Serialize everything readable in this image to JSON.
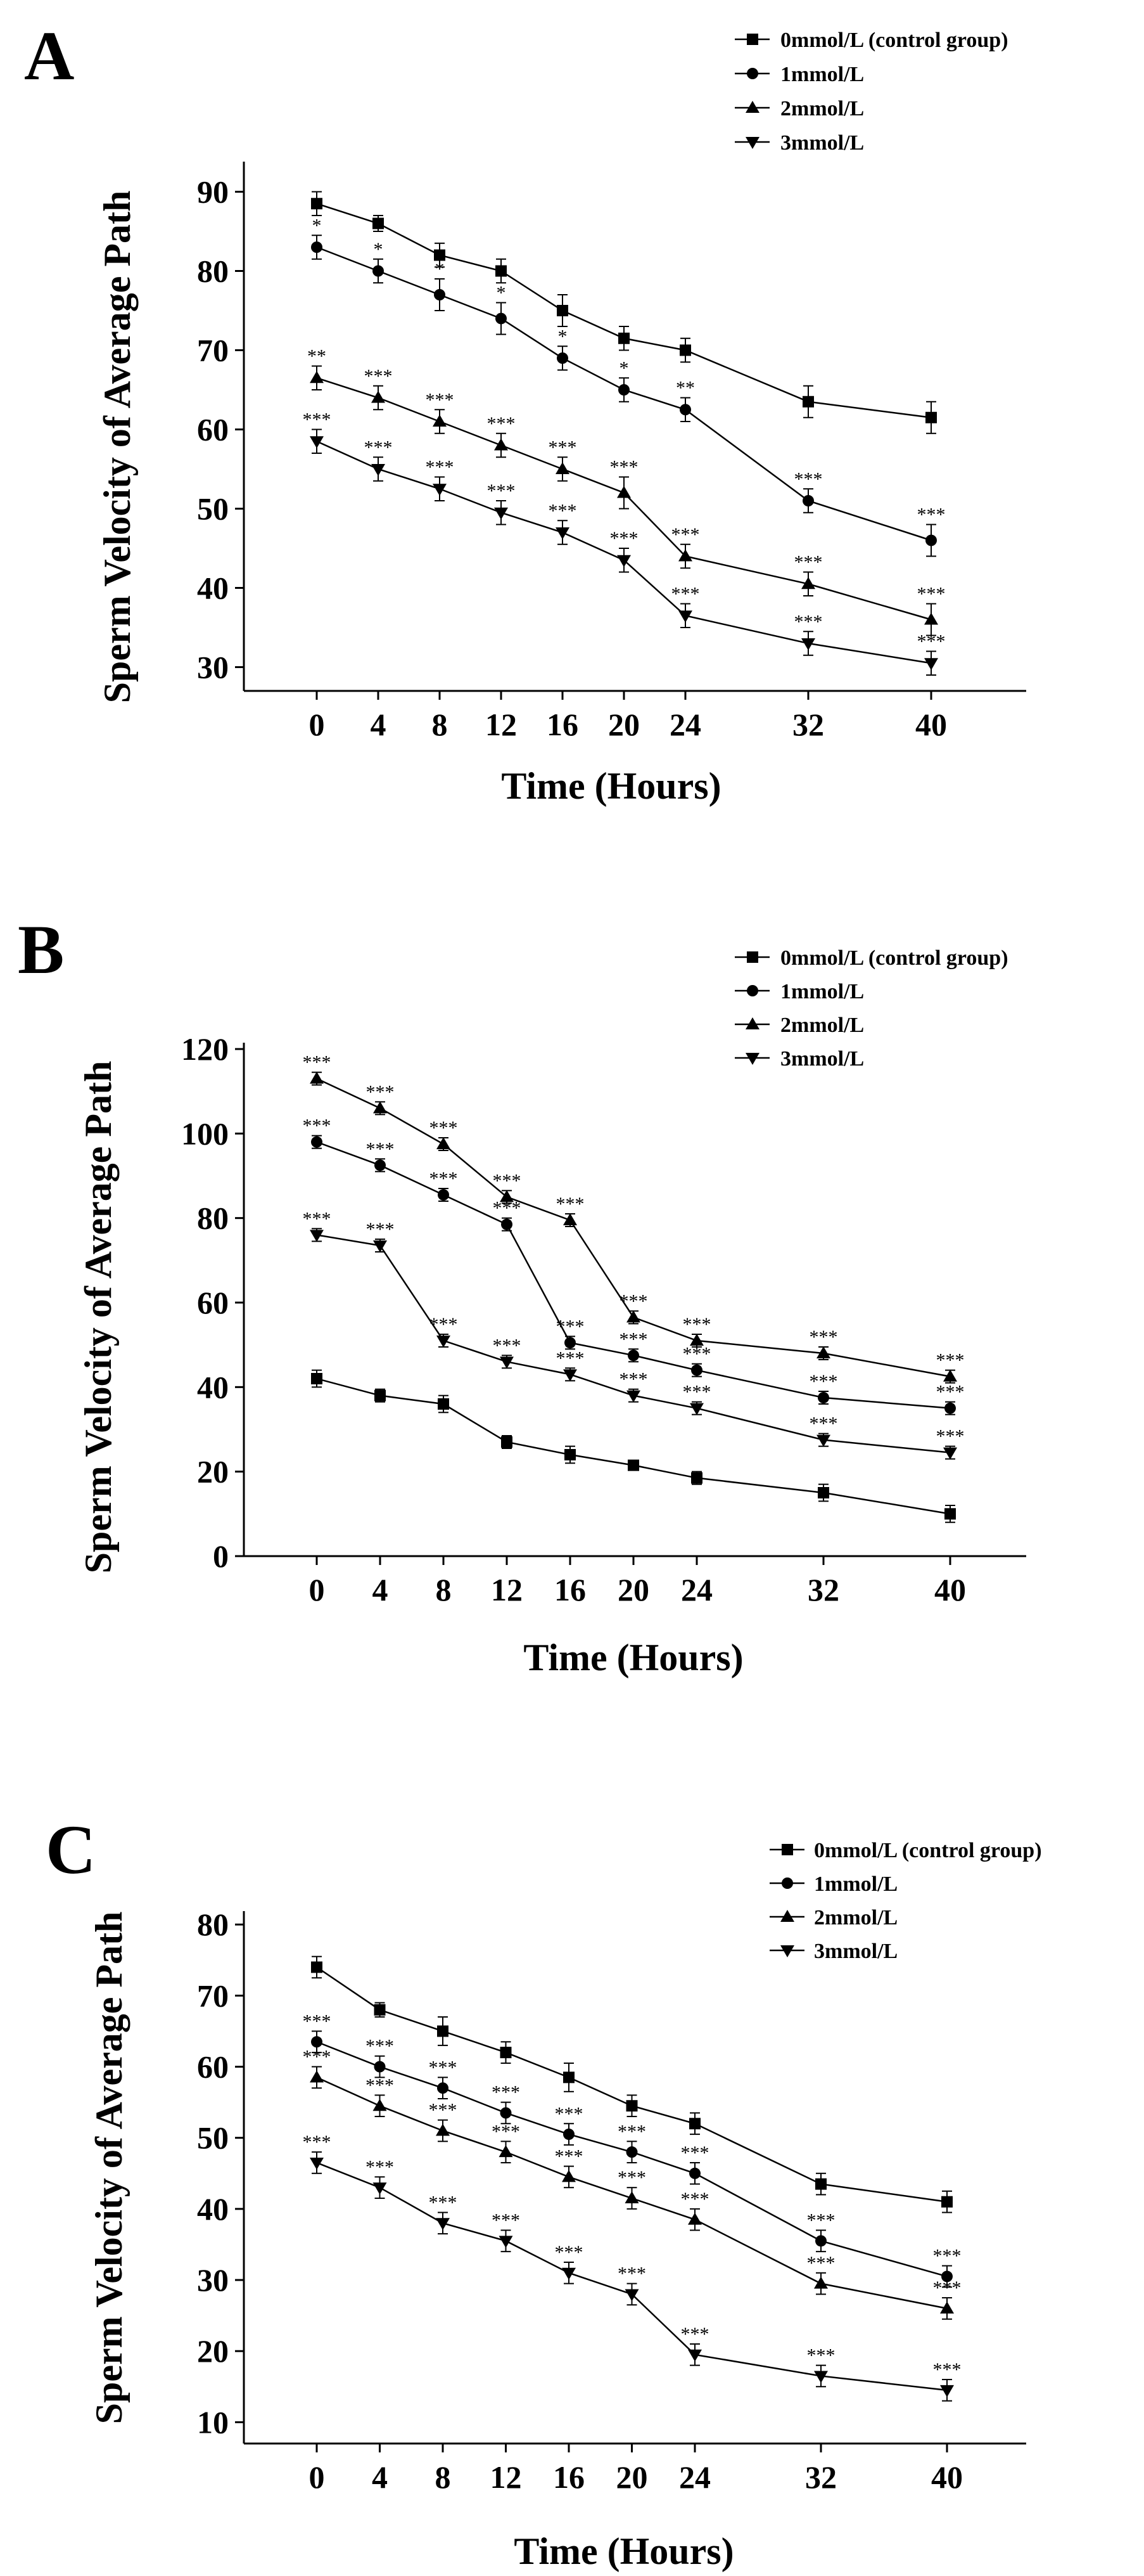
{
  "chart_data": [
    {
      "type": "line",
      "panel": "A",
      "xlabel": "Time (Hours)",
      "ylabel": "Sperm Velocity of Average Path",
      "x": [
        0,
        4,
        8,
        12,
        16,
        20,
        24,
        32,
        40
      ],
      "xticks": [
        "0",
        "4",
        "8",
        "12",
        "16",
        "20",
        "24",
        "32",
        "40"
      ],
      "ylim": [
        27,
        93
      ],
      "yticks": [
        30,
        40,
        50,
        60,
        70,
        80,
        90
      ],
      "legend_position": "top-right",
      "series": [
        {
          "name": "0mmol/L (control group)",
          "marker": "square",
          "values": [
            88.5,
            86,
            82,
            80,
            75,
            71.5,
            70,
            63.5,
            61.5
          ],
          "errors": [
            1.5,
            1,
            1.5,
            1.5,
            2,
            1.5,
            1.5,
            2,
            2
          ],
          "sig": [
            "",
            "",
            "",
            "",
            "",
            "",
            "",
            "",
            ""
          ]
        },
        {
          "name": "1mmol/L",
          "marker": "circle",
          "values": [
            83,
            80,
            77,
            74,
            69,
            65,
            62.5,
            51,
            46
          ],
          "errors": [
            1.5,
            1.5,
            2,
            2,
            1.5,
            1.5,
            1.5,
            1.5,
            2
          ],
          "sig": [
            "*",
            "*",
            "*",
            "*",
            "*",
            "*",
            "**",
            "***",
            "***"
          ]
        },
        {
          "name": "2mmol/L",
          "marker": "triangle-up",
          "values": [
            66.5,
            64,
            61,
            58,
            55,
            52,
            44,
            40.5,
            36
          ],
          "errors": [
            1.5,
            1.5,
            1.5,
            1.5,
            1.5,
            2,
            1.5,
            1.5,
            2
          ],
          "sig": [
            "**",
            "***",
            "***",
            "***",
            "***",
            "***",
            "***",
            "***",
            "***"
          ]
        },
        {
          "name": "3mmol/L",
          "marker": "triangle-down",
          "values": [
            58.5,
            55,
            52.5,
            49.5,
            47,
            43.5,
            36.5,
            33,
            30.5
          ],
          "errors": [
            1.5,
            1.5,
            1.5,
            1.5,
            1.5,
            1.5,
            1.5,
            1.5,
            1.5
          ],
          "sig": [
            "***",
            "***",
            "***",
            "***",
            "***",
            "***",
            "***",
            "***",
            "***"
          ]
        }
      ]
    },
    {
      "type": "line",
      "panel": "B",
      "xlabel": "Time (Hours)",
      "ylabel": "Sperm Velocity of Average Path",
      "x": [
        0,
        4,
        8,
        12,
        16,
        20,
        24,
        32,
        40
      ],
      "xticks": [
        "0",
        "4",
        "8",
        "12",
        "16",
        "20",
        "24",
        "32",
        "40"
      ],
      "ylim": [
        0,
        120
      ],
      "yticks": [
        0,
        20,
        40,
        60,
        80,
        100,
        120
      ],
      "legend_position": "top-right",
      "series": [
        {
          "name": "0mmol/L (control group)",
          "marker": "square",
          "values": [
            42,
            38,
            36,
            27,
            24,
            21.5,
            18.5,
            15,
            10
          ],
          "errors": [
            2,
            1.5,
            2,
            1.5,
            2,
            1,
            1.5,
            2,
            2
          ],
          "sig": [
            "",
            "",
            "",
            "",
            "",
            "",
            "",
            "",
            ""
          ]
        },
        {
          "name": "1mmol/L",
          "marker": "circle",
          "values": [
            98,
            92.5,
            85.5,
            78.5,
            50.5,
            47.5,
            44,
            37.5,
            35
          ],
          "errors": [
            1.5,
            1.5,
            1.5,
            1.5,
            1.5,
            1.5,
            1.5,
            1.5,
            1.5
          ],
          "sig": [
            "***",
            "***",
            "***",
            "***",
            "***",
            "***",
            "***",
            "***",
            "***"
          ]
        },
        {
          "name": "2mmol/L",
          "marker": "triangle-up",
          "values": [
            113,
            106,
            97.5,
            85,
            79.5,
            56.5,
            51,
            48,
            42.5
          ],
          "errors": [
            1.5,
            1.5,
            1.5,
            1.5,
            1.5,
            1.5,
            1.5,
            1.5,
            1.5
          ],
          "sig": [
            "***",
            "***",
            "***",
            "***",
            "***",
            "***",
            "***",
            "***",
            "***"
          ]
        },
        {
          "name": "3mmol/L",
          "marker": "triangle-down",
          "values": [
            76,
            73.5,
            51,
            46,
            43,
            38,
            35,
            27.5,
            24.5
          ],
          "errors": [
            1.5,
            1.5,
            1.5,
            1.5,
            1.5,
            1.5,
            1.5,
            1.5,
            1.5
          ],
          "sig": [
            "***",
            "***",
            "***",
            "***",
            "***",
            "***",
            "***",
            "***",
            "***"
          ]
        }
      ]
    },
    {
      "type": "line",
      "panel": "C",
      "xlabel": "Time (Hours)",
      "ylabel": "Sperm Velocity of Average Path",
      "x": [
        0,
        4,
        8,
        12,
        16,
        20,
        24,
        32,
        40
      ],
      "xticks": [
        "0",
        "4",
        "8",
        "12",
        "16",
        "20",
        "24",
        "32",
        "40"
      ],
      "ylim": [
        7,
        81
      ],
      "yticks": [
        10,
        20,
        30,
        40,
        50,
        60,
        70,
        80
      ],
      "legend_position": "top-right",
      "series": [
        {
          "name": "0mmol/L (control group)",
          "marker": "square",
          "values": [
            74,
            68,
            65,
            62,
            58.5,
            54.5,
            52,
            43.5,
            41
          ],
          "errors": [
            1.5,
            1,
            2,
            1.5,
            2,
            1.5,
            1.5,
            1.5,
            1.5
          ],
          "sig": [
            "",
            "",
            "",
            "",
            "",
            "",
            "",
            "",
            ""
          ]
        },
        {
          "name": "1mmol/L",
          "marker": "circle",
          "values": [
            63.5,
            60,
            57,
            53.5,
            50.5,
            48,
            45,
            35.5,
            30.5
          ],
          "errors": [
            1.5,
            1.5,
            1.5,
            1.5,
            1.5,
            1.5,
            1.5,
            1.5,
            1.5
          ],
          "sig": [
            "***",
            "***",
            "***",
            "***",
            "***",
            "***",
            "***",
            "***",
            "***"
          ]
        },
        {
          "name": "2mmol/L",
          "marker": "triangle-up",
          "values": [
            58.5,
            54.5,
            51,
            48,
            44.5,
            41.5,
            38.5,
            29.5,
            26
          ],
          "errors": [
            1.5,
            1.5,
            1.5,
            1.5,
            1.5,
            1.5,
            1.5,
            1.5,
            1.5
          ],
          "sig": [
            "***",
            "***",
            "***",
            "***",
            "***",
            "***",
            "***",
            "***",
            "***"
          ]
        },
        {
          "name": "3mmol/L",
          "marker": "triangle-down",
          "values": [
            46.5,
            43,
            38,
            35.5,
            31,
            28,
            19.5,
            16.5,
            14.5
          ],
          "errors": [
            1.5,
            1.5,
            1.5,
            1.5,
            1.5,
            1.5,
            1.5,
            1.5,
            1.5
          ],
          "sig": [
            "***",
            "***",
            "***",
            "***",
            "***",
            "***",
            "***",
            "***",
            "***"
          ]
        }
      ]
    }
  ]
}
